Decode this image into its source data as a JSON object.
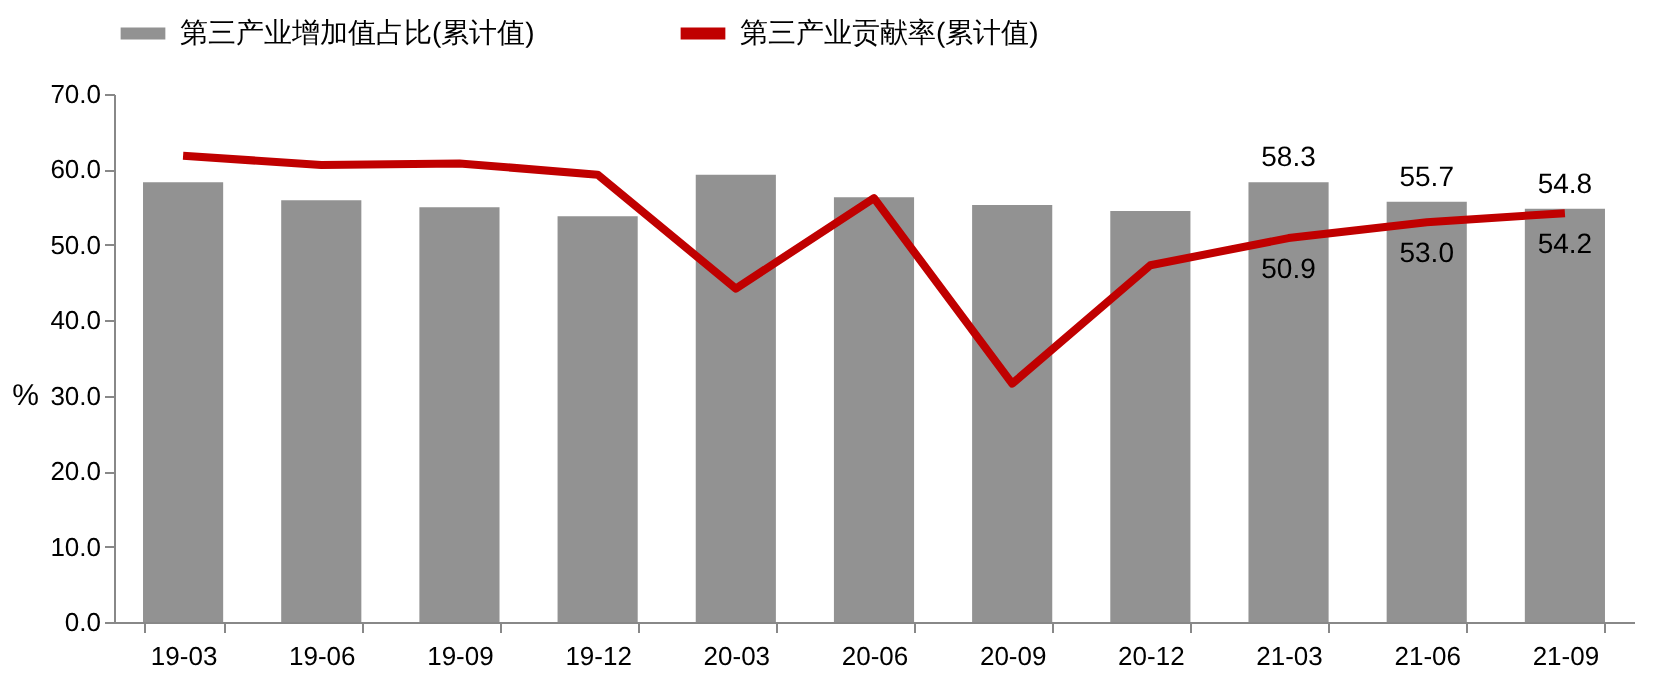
{
  "chart_data": {
    "type": "bar",
    "ylabel": "%",
    "categories": [
      "19-03",
      "19-06",
      "19-09",
      "19-12",
      "20-03",
      "20-06",
      "20-09",
      "20-12",
      "21-03",
      "21-06",
      "21-09"
    ],
    "series": [
      {
        "name": "第三产业增加值占比(累计值)",
        "color": "#929292",
        "values": [
          58.3,
          55.9,
          55.0,
          53.8,
          59.3,
          56.3,
          55.3,
          54.5,
          58.3,
          55.7,
          54.8
        ],
        "value_labels": [
          null,
          null,
          null,
          null,
          null,
          null,
          null,
          null,
          "58.3",
          "55.7",
          "54.8"
        ]
      },
      {
        "name": "第三产业贡献率(累计值)",
        "type": "line",
        "color": "#c00000",
        "values": [
          61.8,
          60.6,
          60.8,
          59.3,
          44.2,
          56.2,
          31.6,
          47.3,
          50.9,
          53.0,
          54.2
        ],
        "value_labels": [
          null,
          null,
          null,
          null,
          null,
          null,
          null,
          null,
          "50.9",
          "53.0",
          "54.2"
        ]
      }
    ],
    "ylim": [
      0,
      70
    ],
    "yticks": [
      {
        "value": 0,
        "label": "0.0"
      },
      {
        "value": 10,
        "label": "10.0"
      },
      {
        "value": 20,
        "label": "20.0"
      },
      {
        "value": 30,
        "label": "30.0"
      },
      {
        "value": 40,
        "label": "40.0"
      },
      {
        "value": 50,
        "label": "50.0"
      },
      {
        "value": 60,
        "label": "60.0"
      },
      {
        "value": 70,
        "label": "70.0"
      }
    ],
    "grid": false,
    "legend": "top"
  }
}
